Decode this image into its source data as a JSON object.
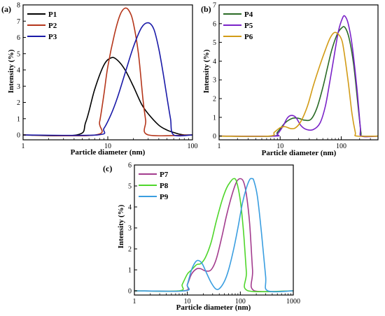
{
  "chart_data": [
    {
      "panel_label": "(a)",
      "type": "line",
      "xscale": "log",
      "xlim": [
        1,
        100
      ],
      "ylim": [
        -0.3,
        8
      ],
      "xticks": [
        "1",
        "10",
        "100"
      ],
      "yticks": [
        "0",
        "1",
        "2",
        "3",
        "4",
        "5",
        "6",
        "7",
        "8"
      ],
      "xlabel": "Particle diameter (nm)",
      "ylabel": "Intensity (%)",
      "legend_position": "top-left",
      "series": [
        {
          "name": "P1",
          "color": "#000000",
          "x": [
            1,
            4.3,
            5.5,
            7,
            9,
            11,
            13,
            16,
            20,
            25,
            30,
            40,
            50,
            60,
            70,
            80,
            100
          ],
          "y": [
            0,
            0,
            0.8,
            2.8,
            4.3,
            4.75,
            4.6,
            4,
            3,
            1.9,
            1.3,
            0.6,
            0.3,
            0.15,
            0.05,
            0,
            0
          ]
        },
        {
          "name": "P2",
          "color": "#b5361b",
          "x": [
            1,
            7.2,
            8,
            9,
            10,
            12,
            14,
            16,
            18,
            20,
            23,
            26,
            28,
            30,
            100
          ],
          "y": [
            0,
            0,
            0.8,
            2.5,
            4.2,
            6.2,
            7.4,
            7.8,
            7.6,
            6.9,
            5,
            2.2,
            0.9,
            0,
            0
          ]
        },
        {
          "name": "P3",
          "color": "#1a1aa8",
          "x": [
            1,
            7.5,
            9,
            11,
            13,
            16,
            20,
            25,
            30,
            35,
            40,
            45,
            50,
            55,
            60,
            100
          ],
          "y": [
            0,
            0,
            0.4,
            1.3,
            2.3,
            3.8,
            5.4,
            6.6,
            6.9,
            6.5,
            5.3,
            3.8,
            2.3,
            1,
            0,
            0
          ]
        }
      ]
    },
    {
      "panel_label": "(b)",
      "type": "line",
      "xscale": "log",
      "xlim": [
        1,
        400
      ],
      "ylim": [
        -0.2,
        7
      ],
      "xticks": [
        "1",
        "10",
        "100"
      ],
      "yticks": [
        "0",
        "1",
        "2",
        "3",
        "4",
        "5",
        "6",
        "7"
      ],
      "xlabel": "Particle diameter (nm)",
      "ylabel": "Intensity (%)",
      "legend_position": "top-left",
      "series": [
        {
          "name": "P4",
          "color": "#2a6b26",
          "x": [
            1,
            7.5,
            9,
            12,
            16,
            20,
            25,
            32,
            40,
            50,
            60,
            70,
            85,
            100,
            115,
            135,
            160,
            190,
            210,
            220,
            400
          ],
          "y": [
            0,
            0,
            0.2,
            0.7,
            0.95,
            0.95,
            0.85,
            0.9,
            1.5,
            2.6,
            3.7,
            4.6,
            5.4,
            5.75,
            5.8,
            5.2,
            3.8,
            1.5,
            0.2,
            0,
            0
          ]
        },
        {
          "name": "P5",
          "color": "#7a22c8",
          "x": [
            1,
            8,
            9,
            11,
            13,
            15,
            18,
            22,
            27,
            35,
            45,
            55,
            65,
            75,
            90,
            105,
            115,
            130,
            150,
            180,
            205,
            215,
            400
          ],
          "y": [
            0,
            0,
            0.1,
            0.5,
            0.95,
            1.1,
            1.0,
            0.55,
            0.35,
            0.35,
            0.7,
            1.6,
            2.9,
            4.1,
            5.6,
            6.3,
            6.4,
            6.0,
            4.9,
            2.6,
            0.5,
            0,
            0
          ]
        },
        {
          "name": "P6",
          "color": "#d29b16",
          "x": [
            1,
            6.5,
            8,
            10,
            12,
            15,
            18,
            22,
            28,
            35,
            45,
            55,
            65,
            75,
            85,
            100,
            110,
            130,
            150,
            170,
            180,
            400
          ],
          "y": [
            0,
            0,
            0.2,
            0.45,
            0.5,
            0.4,
            0.45,
            0.8,
            1.6,
            2.7,
            3.8,
            4.6,
            5.2,
            5.5,
            5.5,
            5.2,
            4.6,
            2.9,
            1.2,
            0.2,
            0,
            0
          ]
        }
      ]
    },
    {
      "panel_label": "(c)",
      "type": "line",
      "xscale": "log",
      "xlim": [
        1,
        1000
      ],
      "ylim": [
        -0.2,
        6
      ],
      "xticks": [
        "1",
        "10",
        "100",
        "1000"
      ],
      "yticks": [
        "0",
        "1",
        "2",
        "3",
        "4",
        "5",
        "6"
      ],
      "xlabel": "Particle diameter (nm)",
      "ylabel": "Intensity (%)",
      "legend_position": "top-left",
      "series": [
        {
          "name": "P7",
          "color": "#a33c8e",
          "x": [
            1,
            8.5,
            10,
            12,
            15,
            18,
            22,
            28,
            35,
            45,
            55,
            70,
            85,
            100,
            115,
            130,
            150,
            170,
            185,
            1000
          ],
          "y": [
            0,
            0,
            0.3,
            0.8,
            1.05,
            1.05,
            0.95,
            1.0,
            1.5,
            2.6,
            3.6,
            4.6,
            5.2,
            5.35,
            5.2,
            4.6,
            3.2,
            1.0,
            0,
            0
          ]
        },
        {
          "name": "P8",
          "color": "#4fd62b",
          "x": [
            1,
            7,
            8,
            10,
            12,
            15,
            18,
            22,
            28,
            35,
            45,
            55,
            65,
            75,
            85,
            100,
            115,
            130,
            140,
            1000
          ],
          "y": [
            0,
            0,
            0.3,
            0.8,
            1.0,
            1.25,
            1.3,
            1.6,
            2.3,
            3.3,
            4.3,
            4.9,
            5.2,
            5.35,
            5.2,
            4.3,
            2.8,
            0.9,
            0,
            0
          ]
        },
        {
          "name": "P9",
          "color": "#3a9ee0",
          "x": [
            1,
            9,
            10,
            12,
            14,
            16,
            19,
            23,
            28,
            34,
            40,
            50,
            60,
            75,
            90,
            110,
            130,
            150,
            165,
            180,
            210,
            250,
            300,
            330,
            1000
          ],
          "y": [
            0,
            0,
            0.3,
            1.0,
            1.35,
            1.45,
            1.3,
            0.85,
            0.4,
            0.1,
            0.1,
            0.45,
            1.0,
            2.0,
            3.0,
            4.2,
            4.9,
            5.3,
            5.35,
            5.25,
            4.5,
            2.8,
            0.7,
            0,
            0
          ]
        }
      ]
    }
  ]
}
